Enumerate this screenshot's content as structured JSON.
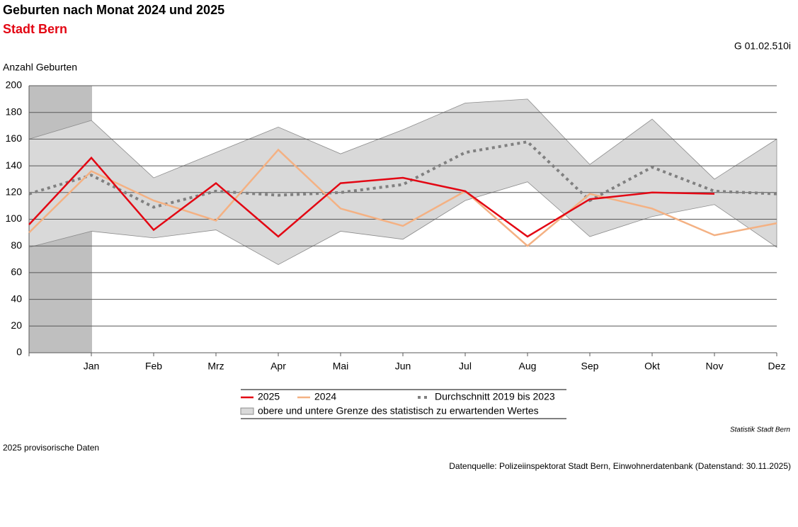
{
  "header": {
    "title": "Geburten nach Monat 2024 und 2025",
    "subtitle": "Stadt Bern",
    "code": "G 01.02.510i"
  },
  "chart_data": {
    "type": "line",
    "y_label": "Anzahl Geburten",
    "categories": [
      null,
      "Jan",
      "Feb",
      "Mrz",
      "Apr",
      "Mai",
      "Jun",
      "Jul",
      "Aug",
      "Sep",
      "Okt",
      "Nov",
      "Dez"
    ],
    "ylim": [
      0,
      200
    ],
    "yticks": [
      0,
      20,
      40,
      60,
      80,
      100,
      120,
      140,
      160,
      180,
      200
    ],
    "grid": true,
    "band": {
      "name": "obere und untere Grenze des statistisch zu erwartenden Wertes",
      "color": "#d9d9d9",
      "upper": [
        160,
        174,
        131,
        150,
        169,
        149,
        167,
        187,
        190,
        141,
        175,
        130,
        160
      ],
      "lower": [
        79,
        91,
        86,
        92,
        66,
        91,
        85,
        114,
        128,
        87,
        102,
        111,
        79
      ]
    },
    "series": [
      {
        "name": "2025",
        "color": "#e30613",
        "values": [
          96,
          146,
          92,
          127,
          87,
          127,
          131,
          121,
          87,
          115,
          120,
          119,
          null
        ]
      },
      {
        "name": "2024",
        "color": "#f4b183",
        "values": [
          90,
          136,
          114,
          99,
          152,
          108,
          95,
          121,
          80,
          119,
          108,
          88,
          97
        ]
      },
      {
        "name": "Durchschnitt 2019 bis 2023",
        "color": "#808080",
        "dashed": true,
        "values": [
          119,
          133,
          109,
          121,
          118,
          120,
          126,
          150,
          158,
          114,
          139,
          121,
          119
        ]
      }
    ]
  },
  "footer": {
    "source_org": "Statistik Stadt Bern",
    "note": "2025 provisorische Daten",
    "source": "Datenquelle: Polizeiinspektorat Stadt Bern, Einwohnerdatenbank (Datenstand: 30.11.2025)"
  }
}
